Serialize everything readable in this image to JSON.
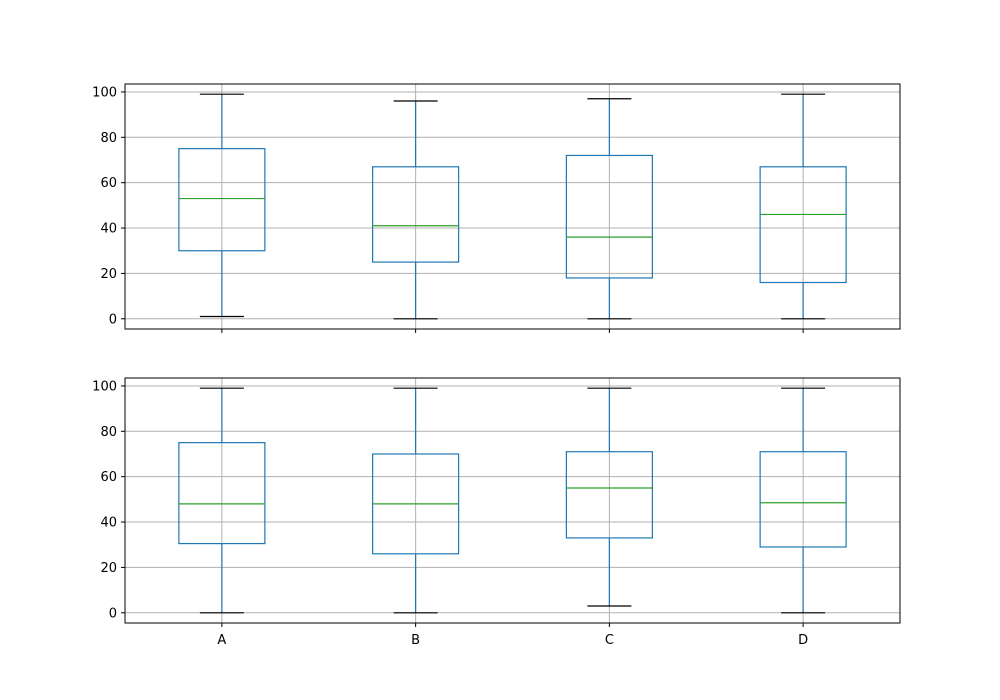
{
  "chart_data": [
    {
      "type": "box",
      "categories": [
        "A",
        "B",
        "C",
        "D"
      ],
      "ylim": [
        -4.5,
        103.5
      ],
      "yticks": [
        0,
        20,
        40,
        60,
        80,
        100
      ],
      "ytick_labels": [
        "0",
        "20",
        "40",
        "60",
        "80",
        "100"
      ],
      "show_x_tick_labels": false,
      "grid": true,
      "boxes": [
        {
          "category": "A",
          "whislo": 1,
          "q1": 30,
          "med": 53,
          "q3": 75,
          "whishi": 99
        },
        {
          "category": "B",
          "whislo": 0,
          "q1": 25,
          "med": 41,
          "q3": 67,
          "whishi": 96
        },
        {
          "category": "C",
          "whislo": 0,
          "q1": 18,
          "med": 36,
          "q3": 72,
          "whishi": 97
        },
        {
          "category": "D",
          "whislo": 0,
          "q1": 16,
          "med": 46,
          "q3": 67,
          "whishi": 99
        }
      ],
      "colors": {
        "box": "#1f77b4",
        "median": "#2ca02c",
        "cap": "#000000",
        "grid": "#b0b0b0"
      }
    },
    {
      "type": "box",
      "categories": [
        "A",
        "B",
        "C",
        "D"
      ],
      "ylim": [
        -4.5,
        103.5
      ],
      "yticks": [
        0,
        20,
        40,
        60,
        80,
        100
      ],
      "ytick_labels": [
        "0",
        "20",
        "40",
        "60",
        "80",
        "100"
      ],
      "show_x_tick_labels": true,
      "grid": true,
      "boxes": [
        {
          "category": "A",
          "whislo": 0,
          "q1": 30.5,
          "med": 48,
          "q3": 75,
          "whishi": 99
        },
        {
          "category": "B",
          "whislo": 0,
          "q1": 26,
          "med": 48,
          "q3": 70,
          "whishi": 99
        },
        {
          "category": "C",
          "whislo": 3,
          "q1": 33,
          "med": 55,
          "q3": 71,
          "whishi": 99
        },
        {
          "category": "D",
          "whislo": 0,
          "q1": 29,
          "med": 48.5,
          "q3": 71,
          "whishi": 99
        }
      ],
      "colors": {
        "box": "#1f77b4",
        "median": "#2ca02c",
        "cap": "#000000",
        "grid": "#b0b0b0"
      }
    }
  ]
}
